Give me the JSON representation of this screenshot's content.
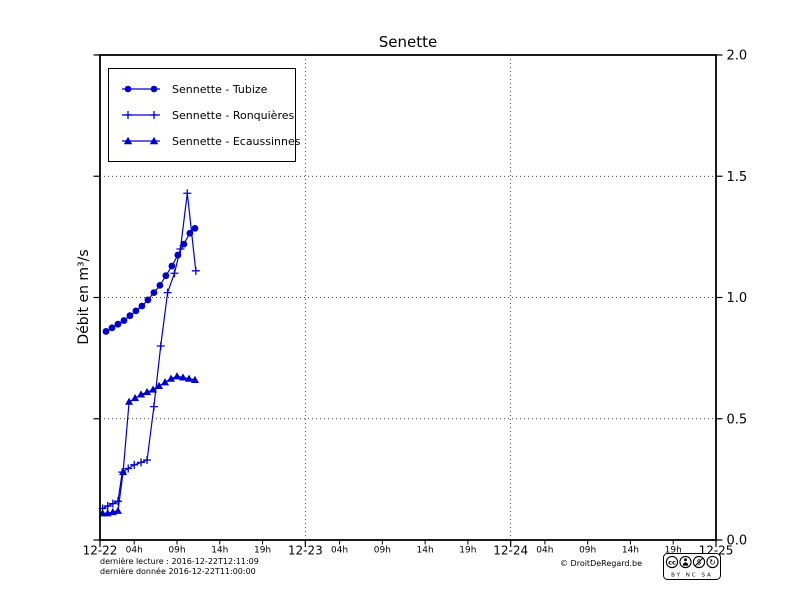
{
  "title": "Senette",
  "ylabel": "Débit en m³/s",
  "accent_color": "#0000cd",
  "footer": {
    "line1": "dernière lecture : 2016-12-22T12:11:09",
    "line2": "dernière donnée  2016-12-22T11:00:00",
    "copyright": "© DroitDeRegard.be",
    "badge": {
      "cc": "cc",
      "nc_glyph": "$",
      "sa_glyph": "↻",
      "row": "BY NC SA"
    }
  },
  "chart_data": {
    "type": "line",
    "title": "Senette",
    "xlabel": "",
    "ylabel": "Débit en m³/s",
    "x_unit": "hours from 2016-12-22 00:00",
    "x_range": [
      0,
      72
    ],
    "ylim": [
      0,
      2.0
    ],
    "grid": {
      "h": [
        0.5,
        1.0,
        1.5
      ],
      "v": [
        24,
        48
      ],
      "style": "dotted"
    },
    "legend_position": "upper left",
    "x_major_ticks": [
      {
        "t": 0,
        "label": "12-22"
      },
      {
        "t": 24,
        "label": "12-23"
      },
      {
        "t": 48,
        "label": "12-24"
      },
      {
        "t": 72,
        "label": "12-25"
      }
    ],
    "x_minor_ticks": [
      {
        "t": 4,
        "label": "04h"
      },
      {
        "t": 9,
        "label": "09h"
      },
      {
        "t": 14,
        "label": "14h"
      },
      {
        "t": 19,
        "label": "19h"
      },
      {
        "t": 28,
        "label": "04h"
      },
      {
        "t": 33,
        "label": "09h"
      },
      {
        "t": 38,
        "label": "14h"
      },
      {
        "t": 43,
        "label": "19h"
      },
      {
        "t": 52,
        "label": "04h"
      },
      {
        "t": 57,
        "label": "09h"
      },
      {
        "t": 62,
        "label": "14h"
      },
      {
        "t": 67,
        "label": "19h"
      }
    ],
    "y_ticks": {
      "values": [
        0,
        0.5,
        1.0,
        1.5,
        2.0
      ],
      "labels": [
        "0.0",
        "0.5",
        "1.0",
        "1.5",
        "2.0"
      ],
      "side": "right"
    },
    "series": [
      {
        "name": "Sennette - Tubize",
        "marker": "circle",
        "color": "#0000cd",
        "x": [
          0.7,
          1.4,
          2.1,
          2.8,
          3.5,
          4.2,
          4.9,
          5.6,
          6.3,
          7.0,
          7.7,
          8.4,
          9.1,
          9.8,
          10.5,
          11.1
        ],
        "y": [
          0.86,
          0.875,
          0.89,
          0.905,
          0.925,
          0.945,
          0.965,
          0.99,
          1.02,
          1.05,
          1.09,
          1.13,
          1.175,
          1.22,
          1.265,
          1.285
        ]
      },
      {
        "name": "Sennette - Ronquières",
        "marker": "plus",
        "color": "#0000cd",
        "x": [
          0.3,
          0.9,
          1.5,
          2.1,
          2.6,
          3.3,
          4.0,
          4.8,
          5.5,
          6.3,
          7.1,
          7.9,
          8.7,
          9.4,
          10.2,
          11.2
        ],
        "y": [
          0.13,
          0.14,
          0.15,
          0.16,
          0.28,
          0.295,
          0.31,
          0.32,
          0.33,
          0.55,
          0.8,
          1.02,
          1.1,
          1.2,
          1.43,
          1.11
        ]
      },
      {
        "name": "Sennette - Ecaussinnes",
        "marker": "triangle",
        "color": "#0000cd",
        "x": [
          0.3,
          0.9,
          1.5,
          2.1,
          2.7,
          3.4,
          4.1,
          4.8,
          5.5,
          6.2,
          6.9,
          7.6,
          8.3,
          9.0,
          9.7,
          10.4,
          11.1
        ],
        "y": [
          0.11,
          0.11,
          0.115,
          0.12,
          0.28,
          0.57,
          0.585,
          0.6,
          0.61,
          0.62,
          0.635,
          0.65,
          0.665,
          0.675,
          0.67,
          0.665,
          0.66
        ]
      }
    ]
  }
}
